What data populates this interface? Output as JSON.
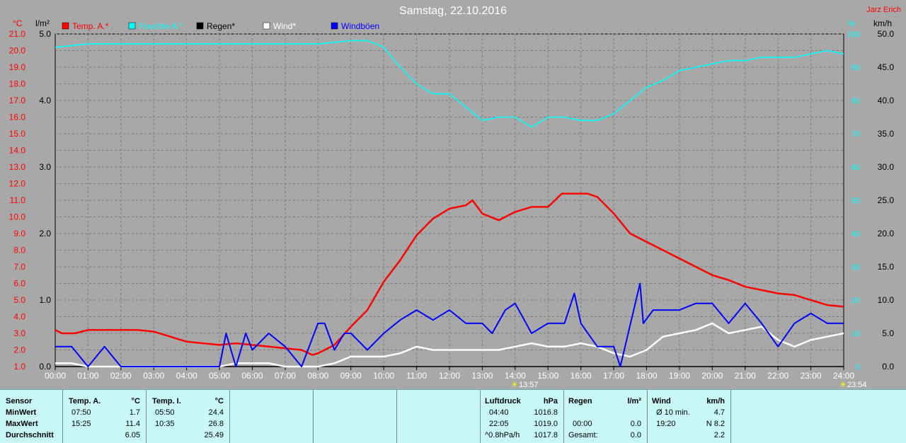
{
  "header": {
    "title": "Samstag, 22.10.2016",
    "author": "Jarz Erich"
  },
  "units": {
    "left": "°C",
    "mid": "l/m²",
    "right1": "%",
    "right2": "km/h"
  },
  "legend": [
    {
      "label": "Temp. A.*",
      "color": "#ff0000"
    },
    {
      "label": "Feuchte A.*",
      "color": "#00ffff"
    },
    {
      "label": "Regen*",
      "color": "#000000"
    },
    {
      "label": "Wind*",
      "color": "#ffffff"
    },
    {
      "label": "Windböen",
      "color": "#0000ff"
    }
  ],
  "sun_marks": {
    "sunrise": "13:57",
    "sunset": "23:54"
  },
  "chart_data": {
    "type": "line",
    "title": "Samstag, 22.10.2016",
    "x_ticks": [
      "00:00",
      "01:00",
      "02:00",
      "03:00",
      "04:00",
      "05:00",
      "06:00",
      "07:00",
      "08:00",
      "09:00",
      "10:00",
      "11:00",
      "12:00",
      "13:00",
      "14:00",
      "15:00",
      "16:00",
      "17:00",
      "18:00",
      "19:00",
      "20:00",
      "21:00",
      "22:00",
      "23:00",
      "24:00"
    ],
    "axes": {
      "temp": {
        "label": "°C",
        "ylim": [
          1.0,
          21.0
        ],
        "ticks": [
          "1.0",
          "2.0",
          "3.0",
          "4.0",
          "5.0",
          "6.0",
          "7.0",
          "8.0",
          "9.0",
          "10.0",
          "11.0",
          "12.0",
          "13.0",
          "14.0",
          "15.0",
          "16.0",
          "17.0",
          "18.0",
          "19.0",
          "20.0",
          "21.0"
        ]
      },
      "rain": {
        "label": "l/m²",
        "ylim": [
          0.0,
          5.0
        ],
        "ticks": [
          "0.0",
          "1.0",
          "2.0",
          "3.0",
          "4.0",
          "5.0"
        ]
      },
      "humidity": {
        "label": "%",
        "ylim": [
          0,
          100
        ],
        "ticks": [
          "0",
          "10",
          "20",
          "30",
          "40",
          "50",
          "60",
          "70",
          "80",
          "90",
          "100"
        ]
      },
      "wind": {
        "label": "km/h",
        "ylim": [
          0.0,
          50.0
        ],
        "ticks": [
          "0.0",
          "5.0",
          "10.0",
          "15.0",
          "20.0",
          "25.0",
          "30.0",
          "35.0",
          "40.0",
          "45.0",
          "50.0"
        ]
      }
    },
    "grid": true,
    "legend_position": "top-left",
    "series": [
      {
        "name": "Temp. A.*",
        "axis": "temp",
        "color": "#ff0000",
        "x": [
          0,
          0.2,
          0.6,
          1,
          1.5,
          2,
          2.5,
          3,
          3.5,
          4,
          4.5,
          5,
          5.5,
          6,
          6.5,
          7,
          7.5,
          7.83,
          8,
          8.5,
          9,
          9.5,
          10,
          10.5,
          11,
          11.5,
          12,
          12.5,
          12.7,
          13,
          13.5,
          14,
          14.5,
          15,
          15.42,
          15.8,
          16.2,
          16.5,
          17,
          17.5,
          18,
          18.5,
          19,
          19.5,
          20,
          20.5,
          21,
          21.5,
          22,
          22.5,
          23,
          23.5,
          24
        ],
        "values": [
          3.2,
          3.0,
          3.0,
          3.2,
          3.2,
          3.2,
          3.2,
          3.1,
          2.8,
          2.5,
          2.4,
          2.3,
          2.4,
          2.3,
          2.2,
          2.1,
          2.0,
          1.7,
          1.8,
          2.3,
          3.4,
          4.4,
          6.1,
          7.4,
          8.9,
          9.9,
          10.5,
          10.7,
          11.0,
          10.2,
          9.8,
          10.3,
          10.6,
          10.6,
          11.4,
          11.4,
          11.4,
          11.2,
          10.2,
          9.0,
          8.5,
          8.0,
          7.5,
          7.0,
          6.5,
          6.2,
          5.8,
          5.6,
          5.4,
          5.3,
          5.0,
          4.7,
          4.6
        ]
      },
      {
        "name": "Feuchte A.*",
        "axis": "humidity",
        "color": "#00ffff",
        "x": [
          0,
          1,
          2,
          3,
          4,
          5,
          6,
          7,
          8,
          9,
          9.5,
          10,
          10.5,
          11,
          11.5,
          12,
          12.5,
          13,
          13.5,
          14,
          14.5,
          15,
          15.5,
          16,
          16.5,
          17,
          17.5,
          18,
          18.5,
          19,
          19.5,
          20,
          20.5,
          21,
          21.5,
          22,
          22.5,
          23,
          23.5,
          24
        ],
        "values": [
          96,
          97,
          97,
          97,
          97,
          97,
          97,
          97,
          97,
          98,
          98,
          96,
          90,
          85,
          82,
          82,
          78,
          74,
          75,
          75,
          72,
          75,
          75,
          74,
          74,
          76,
          80,
          84,
          86,
          89,
          90,
          91,
          92,
          92,
          93,
          93,
          93,
          94,
          95,
          94
        ]
      },
      {
        "name": "Regen*",
        "axis": "rain",
        "color": "#000000",
        "x": [
          0,
          24
        ],
        "values": [
          0.0,
          0.0
        ]
      },
      {
        "name": "Wind*",
        "axis": "wind",
        "color": "#ffffff",
        "x": [
          0,
          0.5,
          1,
          1.5,
          2,
          3,
          4,
          5,
          5.5,
          6,
          6.5,
          7,
          7.5,
          8,
          8.5,
          9,
          9.5,
          10,
          10.5,
          11,
          11.5,
          12,
          12.5,
          13,
          13.5,
          14,
          14.5,
          15,
          15.5,
          16,
          16.5,
          17,
          17.5,
          18,
          18.5,
          19,
          19.5,
          20,
          20.5,
          21,
          21.5,
          22,
          22.5,
          23,
          23.5,
          24
        ],
        "values": [
          0.5,
          0.5,
          0,
          0,
          0,
          0,
          0,
          0,
          0.5,
          0.5,
          0.5,
          0,
          0,
          0,
          0.5,
          1.5,
          1.5,
          1.5,
          2.0,
          3.0,
          2.5,
          2.5,
          2.5,
          2.5,
          2.5,
          3.0,
          3.5,
          3.0,
          3.0,
          3.5,
          3.0,
          2.0,
          1.5,
          2.5,
          4.5,
          5.0,
          5.5,
          6.5,
          5.0,
          5.5,
          6.0,
          4.0,
          3.0,
          4.0,
          4.5,
          5.0
        ]
      },
      {
        "name": "Windböen",
        "axis": "wind",
        "color": "#0000ff",
        "x": [
          0,
          0.5,
          1,
          1.5,
          2,
          3,
          4,
          5,
          5.2,
          5.5,
          5.8,
          6,
          6.5,
          7,
          7.5,
          8,
          8.2,
          8.5,
          8.8,
          9,
          9.5,
          10,
          10.5,
          11,
          11.5,
          12,
          12.5,
          13,
          13.3,
          13.7,
          14,
          14.5,
          15,
          15.5,
          15.8,
          16,
          16.5,
          17,
          17.2,
          17.8,
          17.9,
          18.2,
          19,
          19.5,
          20,
          20.5,
          21,
          21.5,
          22,
          22.5,
          23,
          23.5,
          24
        ],
        "values": [
          3.0,
          3.0,
          0,
          3.0,
          0,
          0,
          0,
          0,
          5.0,
          0,
          5.0,
          2.5,
          5.0,
          3.0,
          0,
          6.5,
          6.5,
          2.5,
          5.0,
          5.0,
          2.5,
          5.0,
          7.0,
          8.5,
          7.0,
          8.5,
          6.5,
          6.5,
          5.0,
          8.5,
          9.5,
          5.0,
          6.5,
          6.5,
          11.0,
          6.5,
          3.0,
          3.0,
          0,
          12.5,
          6.5,
          8.5,
          8.5,
          9.5,
          9.5,
          6.5,
          9.5,
          6.5,
          3.0,
          6.5,
          8.0,
          6.5,
          6.5
        ]
      }
    ]
  },
  "stats": {
    "sensor": {
      "header": "Sensor",
      "rows": [
        "MinWert",
        "MaxWert",
        "Durchschnitt"
      ]
    },
    "temp_a": {
      "header": "Temp. A.",
      "unit": "°C",
      "min_time": "07:50",
      "min_val": "1.7",
      "max_time": "15:25",
      "max_val": "11.4",
      "avg": "6.05"
    },
    "temp_i": {
      "header": "Temp. I.",
      "unit": "°C",
      "min_time": "05:50",
      "min_val": "24.4",
      "max_time": "10:35",
      "max_val": "26.8",
      "avg": "25.49"
    },
    "pressure": {
      "header": "Luftdruck",
      "unit": "hPa",
      "t1": "04:40",
      "v1": "1016.8",
      "t2": "22:05",
      "v2": "1019.0",
      "t3": "^0.8hPa/h",
      "v3": "1017.8"
    },
    "rain": {
      "header": "Regen",
      "unit": "l/m²",
      "t2": "00:00",
      "v2": "0.0",
      "t3": "Gesamt:",
      "v3": "0.0"
    },
    "wind": {
      "header": "Wind",
      "unit": "km/h",
      "t1": "Ø 10 min.",
      "v1": "4.7",
      "t2": "19:20",
      "v2": "N 8.2",
      "v3": "2.2"
    }
  }
}
